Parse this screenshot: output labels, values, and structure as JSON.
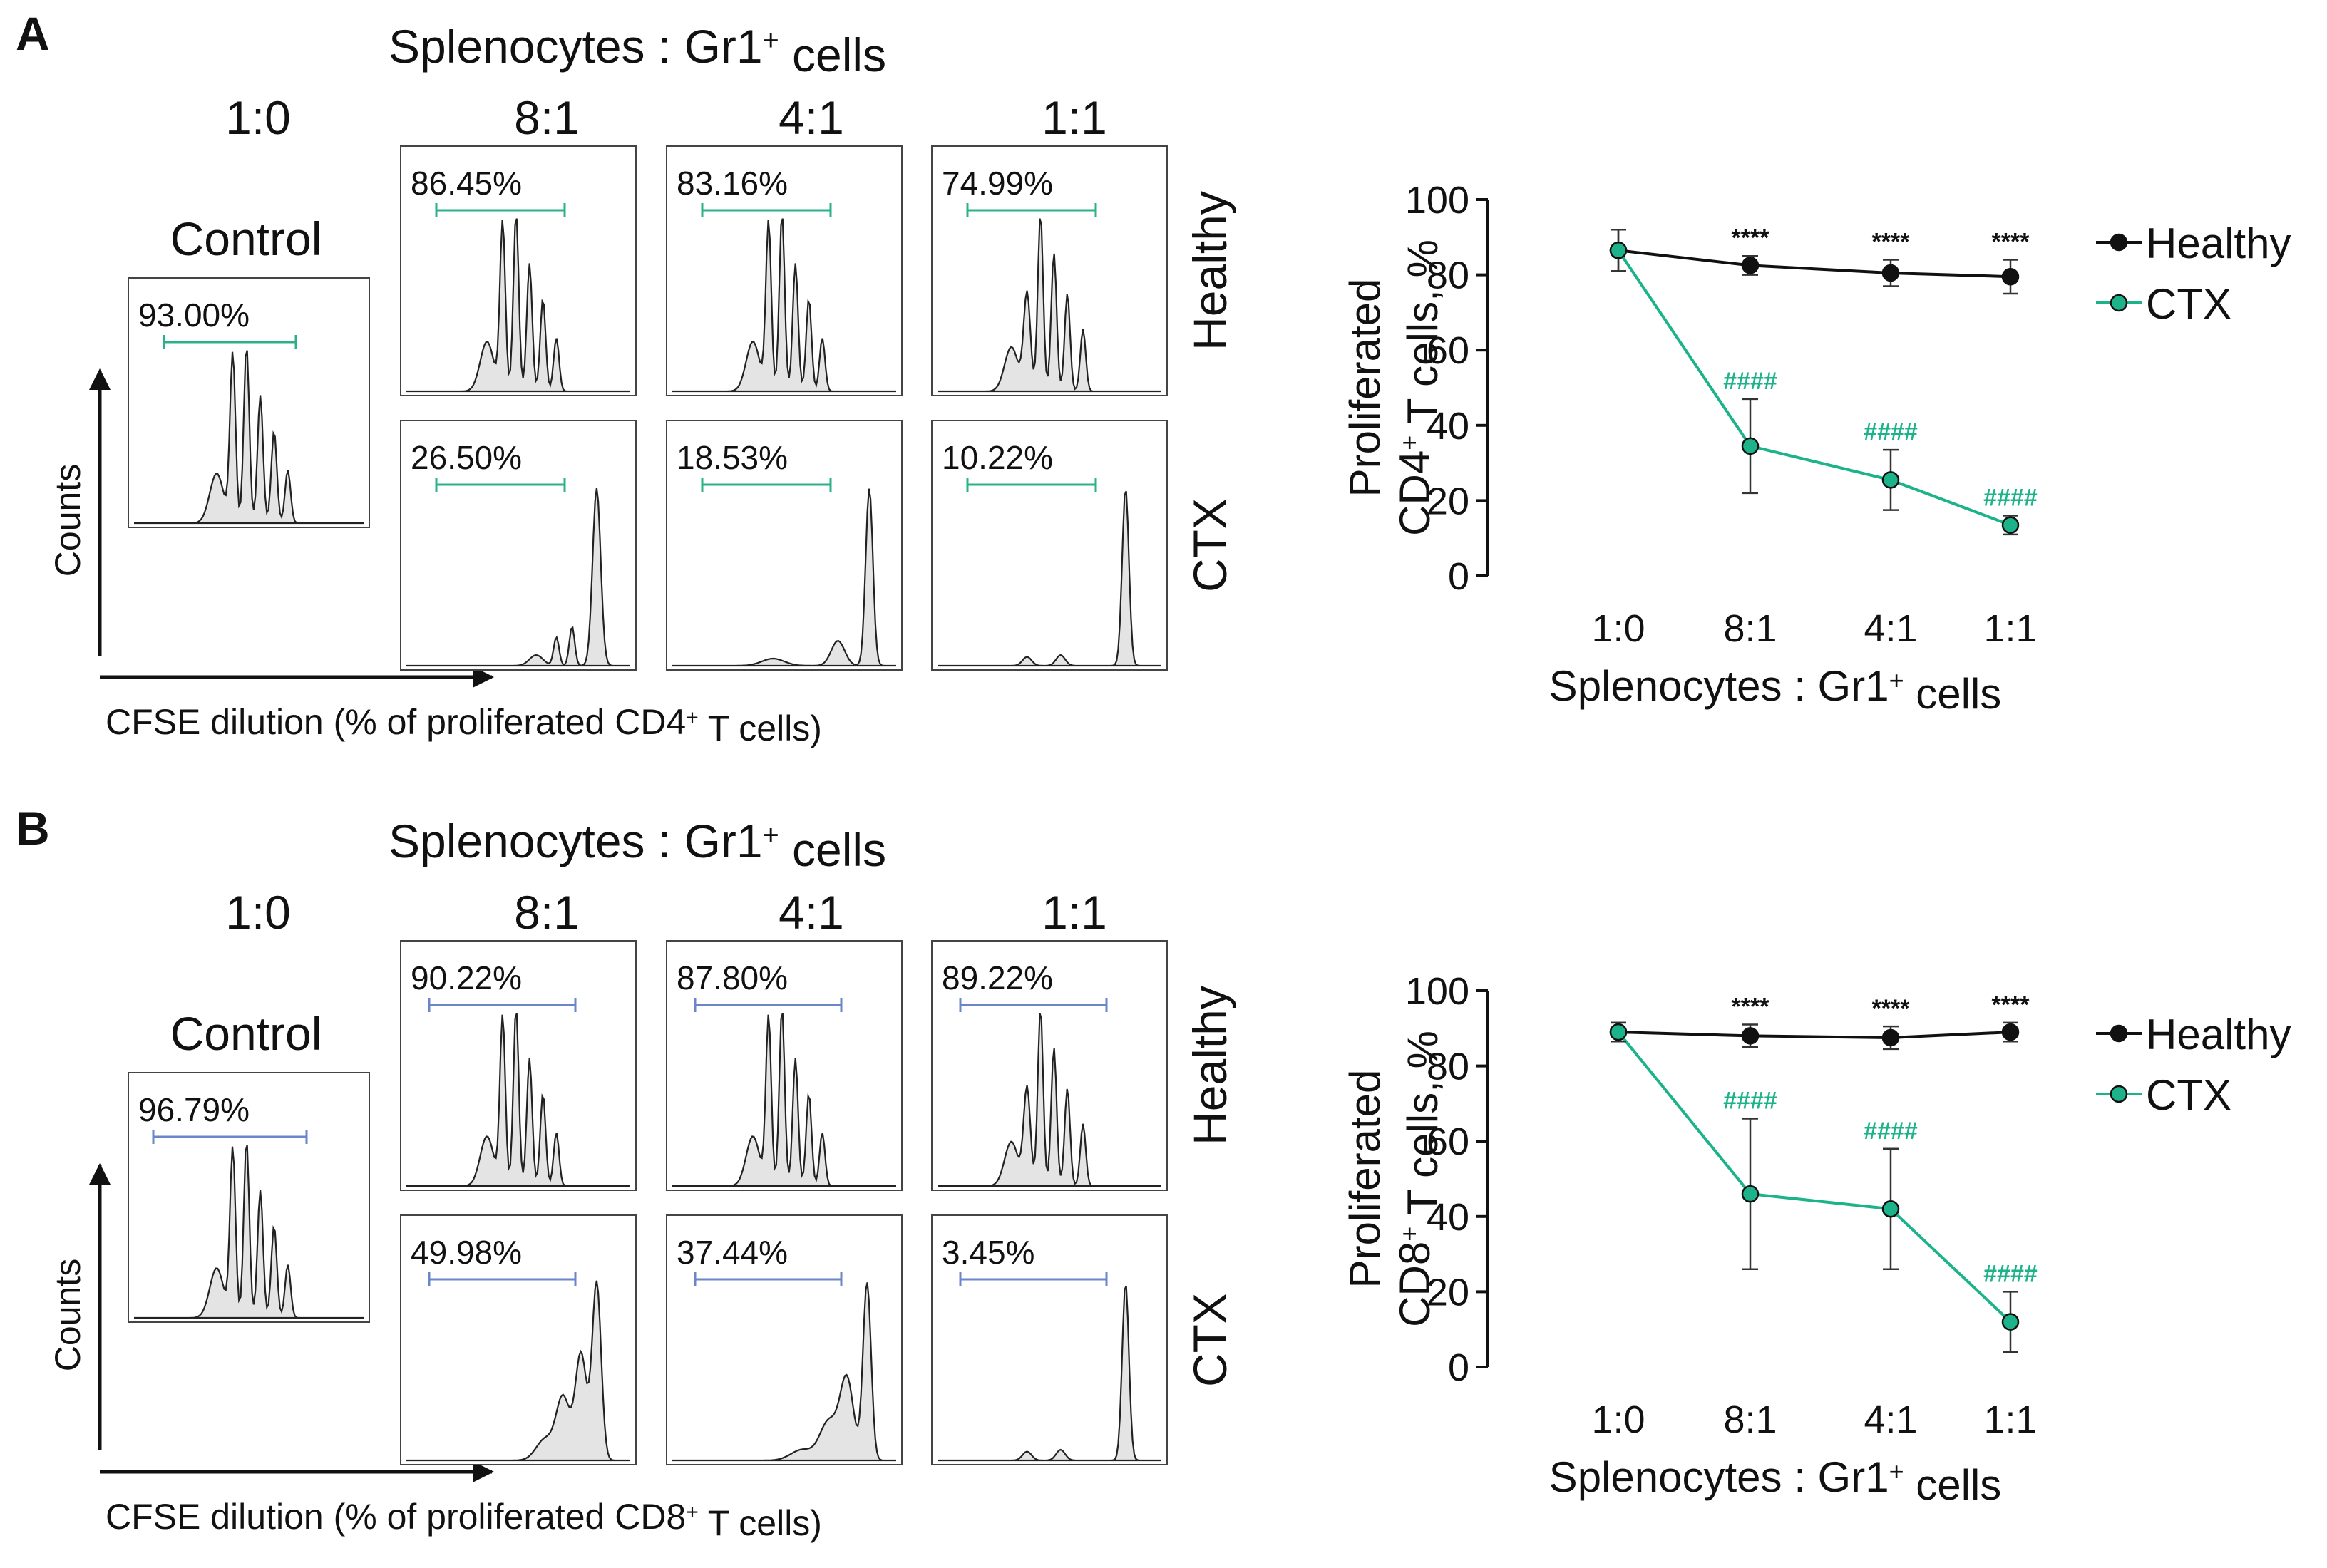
{
  "panels": [
    {
      "letter": "A",
      "title_main": "Splenocytes : Gr1",
      "title_sup": "+",
      "title_tail": " cells",
      "control_ratio": "1:0",
      "control_label": "Control",
      "control_pct": "93.00%",
      "ratios": [
        "8:1",
        "4:1",
        "1:1"
      ],
      "row_labels": [
        "Healthy",
        "CTX"
      ],
      "healthy_pcts": [
        "86.45%",
        "83.16%",
        "74.99%"
      ],
      "ctx_pcts": [
        "26.50%",
        "18.53%",
        "10.22%"
      ],
      "y_axis_label": "Counts",
      "x_axis_label_main": "CFSE dilution (% of proliferated CD4",
      "x_axis_label_sup": "+",
      "x_axis_label_tail": " T cells)",
      "gate_color": "#2bb08a"
    },
    {
      "letter": "B",
      "title_main": "Splenocytes : Gr1",
      "title_sup": "+",
      "title_tail": " cells",
      "control_ratio": "1:0",
      "control_label": "Control",
      "control_pct": "96.79%",
      "ratios": [
        "8:1",
        "4:1",
        "1:1"
      ],
      "row_labels": [
        "Healthy",
        "CTX"
      ],
      "healthy_pcts": [
        "90.22%",
        "87.80%",
        "89.22%"
      ],
      "ctx_pcts": [
        "49.98%",
        "37.44%",
        "3.45%"
      ],
      "y_axis_label": "Counts",
      "x_axis_label_main": "CFSE dilution (% of proliferated CD8",
      "x_axis_label_sup": "+",
      "x_axis_label_tail": " T cells)",
      "gate_color": "#6a86c8"
    }
  ],
  "chart_data": [
    {
      "type": "line",
      "categories": [
        "1:0",
        "8:1",
        "4:1",
        "1:1"
      ],
      "ylim": [
        0,
        100
      ],
      "yticks": [
        0,
        20,
        40,
        60,
        80,
        100
      ],
      "ylabel_line1": "Proliferated",
      "ylabel_line2_main": "CD4",
      "ylabel_line2_sup": "+",
      "ylabel_line2_tail": " T cells, %",
      "xlabel_main": "Splenocytes : Gr1",
      "xlabel_sup": "+",
      "xlabel_tail": " cells",
      "series": [
        {
          "name": "Healthy",
          "color": "#111111",
          "values": [
            86.5,
            82.5,
            80.5,
            79.5
          ],
          "errors": [
            5.5,
            2.5,
            3.5,
            4.5
          ],
          "marks": [
            "",
            "****",
            "****",
            "****"
          ]
        },
        {
          "name": "CTX",
          "color": "#1db38a",
          "values": [
            86.5,
            34.5,
            25.5,
            13.5
          ],
          "errors": [
            5.5,
            12.5,
            8,
            2.5
          ],
          "marks": [
            "",
            "####",
            "####",
            "####"
          ]
        }
      ]
    },
    {
      "type": "line",
      "categories": [
        "1:0",
        "8:1",
        "4:1",
        "1:1"
      ],
      "ylim": [
        0,
        100
      ],
      "yticks": [
        0,
        20,
        40,
        60,
        80,
        100
      ],
      "ylabel_line1": "Proliferated",
      "ylabel_line2_main": "CD8",
      "ylabel_line2_sup": "+",
      "ylabel_line2_tail": " T cells, %",
      "xlabel_main": "Splenocytes : Gr1",
      "xlabel_sup": "+",
      "xlabel_tail": " cells",
      "series": [
        {
          "name": "Healthy",
          "color": "#111111",
          "values": [
            89,
            88,
            87.5,
            89
          ],
          "errors": [
            2.5,
            3,
            3,
            2.5
          ],
          "marks": [
            "",
            "****",
            "****",
            "****"
          ]
        },
        {
          "name": "CTX",
          "color": "#1db38a",
          "values": [
            89,
            46,
            42,
            12
          ],
          "errors": [
            2.5,
            20,
            16,
            8
          ],
          "marks": [
            "",
            "####",
            "####",
            "####"
          ]
        }
      ]
    }
  ]
}
